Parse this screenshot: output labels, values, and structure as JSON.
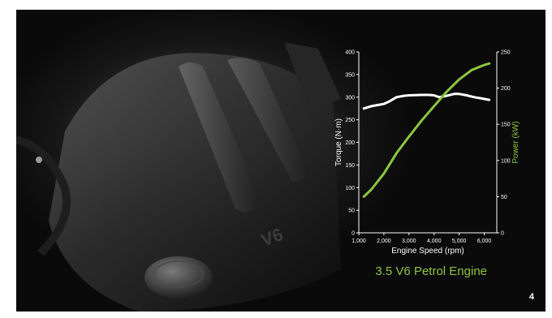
{
  "slide": {
    "caption": "3.5 V6 Petrol Engine",
    "page_number": "4",
    "background_subject": "v6-engine-cover-photo",
    "colors": {
      "torque_line": "#ffffff",
      "power_line": "#8dc63f",
      "background": "#0a0a0a"
    }
  },
  "chart_data": {
    "type": "line",
    "title": "",
    "xlabel": "Engine Speed (rpm)",
    "ylabel": "Torque (N·m)",
    "y2label": "Power (kW)",
    "xlim": [
      1000,
      6500
    ],
    "ylim": [
      0,
      400
    ],
    "y2lim": [
      0,
      250
    ],
    "x_ticks": [
      "1,000",
      "2,000",
      "3,000",
      "4,000",
      "5,000",
      "6,000"
    ],
    "x_tick_values": [
      1000,
      2000,
      3000,
      4000,
      5000,
      6000
    ],
    "y_ticks": [
      "0",
      "50",
      "100",
      "150",
      "200",
      "250",
      "300",
      "350",
      "400"
    ],
    "y_tick_values": [
      0,
      50,
      100,
      150,
      200,
      250,
      300,
      350,
      400
    ],
    "y2_ticks": [
      "0",
      "50",
      "100",
      "150",
      "200",
      "250"
    ],
    "y2_tick_values": [
      0,
      50,
      100,
      150,
      200,
      250
    ],
    "grid": false,
    "series": [
      {
        "axis": "left",
        "x": [
          1200,
          1500,
          2000,
          2200,
          2500,
          2800,
          3000,
          3500,
          3800,
          4000,
          4200,
          4500,
          4800,
          5000,
          5300,
          5600,
          5900,
          6200
        ],
        "values": [
          275,
          280,
          285,
          290,
          300,
          303,
          304,
          305,
          305,
          304,
          300,
          303,
          307,
          307,
          304,
          300,
          297,
          294
        ]
      },
      {
        "axis": "right",
        "x": [
          1200,
          1500,
          2000,
          2500,
          3000,
          3500,
          4000,
          4500,
          5000,
          5500,
          6000,
          6200
        ],
        "values": [
          50,
          60,
          82,
          110,
          133,
          155,
          175,
          195,
          212,
          225,
          232,
          234
        ]
      }
    ]
  }
}
